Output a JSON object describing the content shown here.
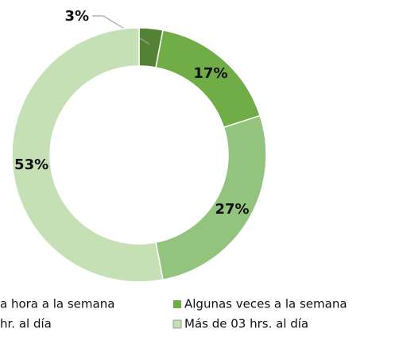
{
  "chart_data": {
    "type": "donut",
    "categories": [
      "a hora a la semana",
      "Algunas veces a la semana",
      "hr. al día",
      "Más de 03 hrs. al día"
    ],
    "values": [
      3,
      17,
      27,
      53
    ],
    "value_labels": [
      "3%",
      "17%",
      "27%",
      "53%"
    ],
    "colors": [
      "#548235",
      "#70ad47",
      "#93c47d",
      "#c5e0b4"
    ],
    "legend": "bottom"
  }
}
